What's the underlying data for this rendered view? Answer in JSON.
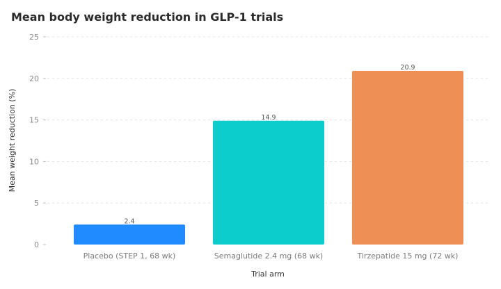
{
  "chart_data": {
    "type": "bar",
    "title": "Mean body weight reduction in GLP-1 trials",
    "xlabel": "Trial arm",
    "ylabel": "Mean weight reduction (%)",
    "categories": [
      "Placebo (STEP 1, 68 wk)",
      "Semaglutide 2.4 mg (68 wk)",
      "Tirzepatide 15 mg (72 wk)"
    ],
    "values": [
      2.4,
      14.9,
      20.9
    ],
    "value_labels": [
      "2.4",
      "14.9",
      "20.9"
    ],
    "bar_colors": [
      "#1f8bff",
      "#0ccccc",
      "#ee8f55"
    ],
    "ylim": [
      0,
      25
    ],
    "yticks": [
      0,
      5,
      10,
      15,
      20,
      25
    ],
    "grid": true,
    "legend": "none"
  }
}
